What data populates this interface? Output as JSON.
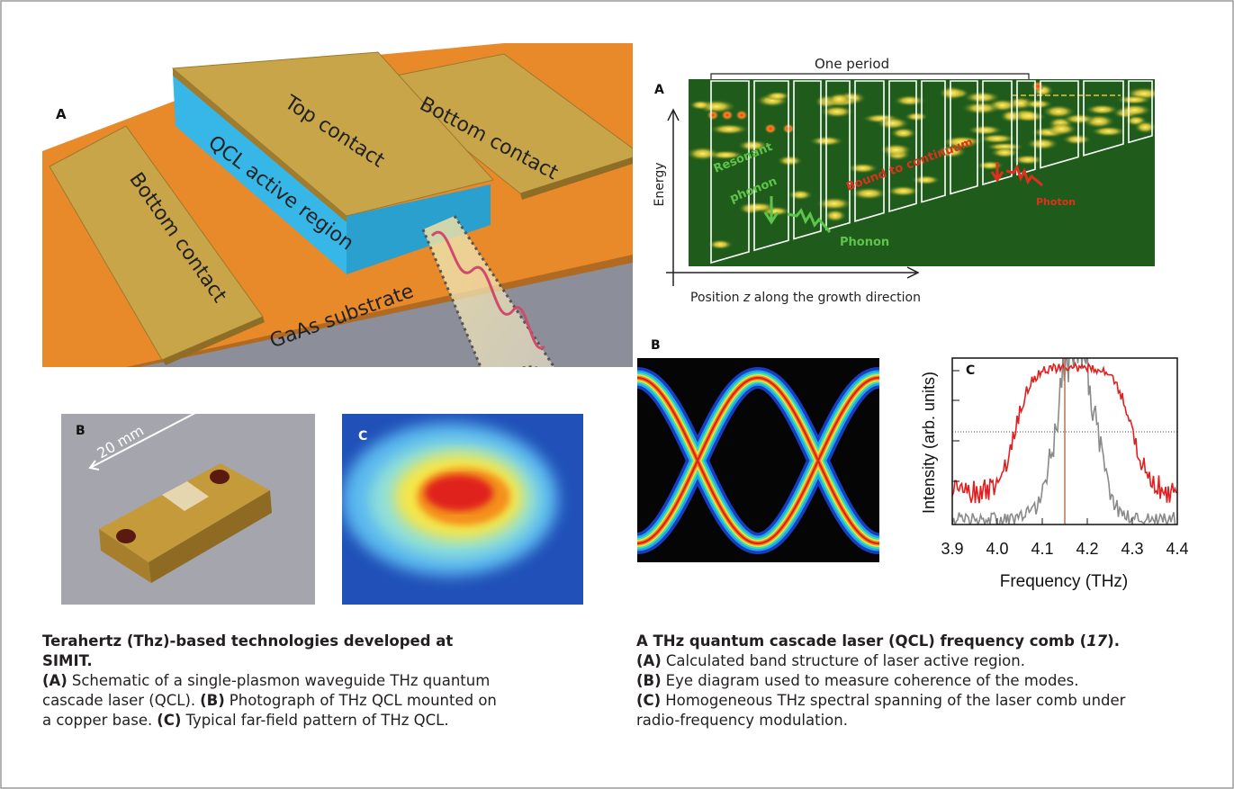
{
  "left_figure": {
    "panel_a": {
      "label": "A",
      "top_contact": "Top contact",
      "bottom_contact_right": "Bottom contact",
      "active_region": "QCL active region",
      "bottom_contact_left": "Bottom contact",
      "substrate": "GaAs substrate"
    },
    "panel_b": {
      "label": "B",
      "scale": "20 mm"
    },
    "panel_c": {
      "label": "C"
    },
    "caption": {
      "title": "Terahertz (Thz)-based technologies developed at SIMIT.",
      "items": [
        {
          "marker": "(A)",
          "text": "Schematic of a single-plasmon waveguide THz quantum cascade laser (QCL)."
        },
        {
          "marker": "(B)",
          "text": "Photograph of THz QCL mounted on a copper base."
        },
        {
          "marker": "(C)",
          "text": "Typical far-field pattern of THz QCL."
        }
      ]
    }
  },
  "right_figure": {
    "panel_a": {
      "label": "A",
      "period": "One period",
      "y_axis": "Energy",
      "x_axis": {
        "before": "Position ",
        "variable": "z",
        "after": " along the growth direction"
      },
      "resonant": [
        "Resonant",
        "phonon"
      ],
      "bound": "Bound to continuum",
      "phonon": "Phonon",
      "photon": "Photon"
    },
    "panel_b": {
      "label": "B"
    },
    "panel_c": {
      "label": "C",
      "y_axis": "Intensity (arb. units)",
      "x_axis": "Frequency (THz)",
      "xlim": [
        3.9,
        4.4
      ],
      "xticks": [
        3.9,
        {
          "value": 4,
          "label": "4.0"
        },
        4.1,
        4.2,
        4.3,
        4.4
      ]
    },
    "caption": {
      "title": {
        "before": "A THz quantum cascade laser (QCL) frequency comb (",
        "ref": "17",
        "after": ")."
      },
      "items": [
        {
          "marker": "(A)",
          "text": "Calculated band structure of laser active region."
        },
        {
          "marker": "(B)",
          "text": "Eye diagram used to measure coherence of the modes."
        },
        {
          "marker": "(C)",
          "text": "Homogeneous THz spectral spanning of the laser comb under radio-frequency modulation."
        }
      ]
    }
  }
}
